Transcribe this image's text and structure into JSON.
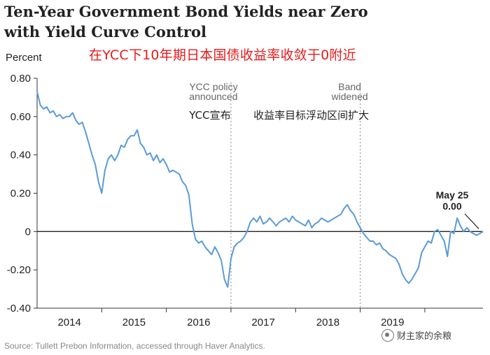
{
  "chart_data": {
    "type": "line",
    "title": "Ten-Year Government Bond Yields near Zero with Yield Curve Control",
    "subtitle": "在YCC下10年期日本国债收益率收敛于0附近",
    "ylabel": "Percent",
    "ylim": [
      -0.4,
      0.8
    ],
    "yticks": [
      "0.80",
      "0.60",
      "0.40",
      "0.20",
      "0",
      "-0.20",
      "-0.40"
    ],
    "ytick_values": [
      0.8,
      0.6,
      0.4,
      0.2,
      0,
      -0.2,
      -0.4
    ],
    "xlim": [
      2013.5,
      2020.4
    ],
    "xticks": [
      "2014",
      "2015",
      "2016",
      "2017",
      "2018",
      "2019"
    ],
    "xtick_centers": [
      2014.0,
      2015.0,
      2016.0,
      2017.0,
      2018.0,
      2019.0
    ],
    "year_boundaries": [
      2014.5,
      2015.5,
      2016.5,
      2017.5,
      2018.5,
      2019.5
    ],
    "series": [
      {
        "color": "#5b9bd5",
        "x": [
          2013.5,
          2013.55,
          2013.6,
          2013.65,
          2013.7,
          2013.75,
          2013.8,
          2013.85,
          2013.9,
          2013.95,
          2014.0,
          2014.05,
          2014.1,
          2014.15,
          2014.2,
          2014.25,
          2014.3,
          2014.35,
          2014.4,
          2014.45,
          2014.5,
          2014.55,
          2014.6,
          2014.65,
          2014.7,
          2014.75,
          2014.8,
          2014.85,
          2014.9,
          2014.95,
          2015.0,
          2015.05,
          2015.1,
          2015.15,
          2015.2,
          2015.25,
          2015.3,
          2015.35,
          2015.4,
          2015.45,
          2015.5,
          2015.55,
          2015.6,
          2015.65,
          2015.7,
          2015.75,
          2015.8,
          2015.85,
          2015.9,
          2015.95,
          2016.0,
          2016.05,
          2016.1,
          2016.15,
          2016.2,
          2016.25,
          2016.3,
          2016.35,
          2016.4,
          2016.45,
          2016.5,
          2016.55,
          2016.6,
          2016.65,
          2016.7,
          2016.75,
          2016.8,
          2016.85,
          2016.9,
          2016.95,
          2017.0,
          2017.05,
          2017.1,
          2017.15,
          2017.2,
          2017.25,
          2017.3,
          2017.35,
          2017.4,
          2017.45,
          2017.5,
          2017.55,
          2017.6,
          2017.65,
          2017.7,
          2017.75,
          2017.8,
          2017.85,
          2017.9,
          2017.95,
          2018.0,
          2018.05,
          2018.1,
          2018.15,
          2018.2,
          2018.25,
          2018.3,
          2018.35,
          2018.4,
          2018.45,
          2018.5,
          2018.55,
          2018.6,
          2018.65,
          2018.7,
          2018.75,
          2018.8,
          2018.85,
          2018.9,
          2018.95,
          2019.0,
          2019.05,
          2019.1,
          2019.15,
          2019.2,
          2019.25,
          2019.3,
          2019.35,
          2019.4,
          2019.45,
          2019.5,
          2019.55,
          2019.6,
          2019.65,
          2019.7,
          2019.75,
          2019.8,
          2019.85,
          2019.9,
          2019.95,
          2020.0,
          2020.05,
          2020.1,
          2020.15,
          2020.2,
          2020.25,
          2020.3,
          2020.35,
          2020.4
        ],
        "y": [
          0.73,
          0.66,
          0.64,
          0.65,
          0.62,
          0.63,
          0.6,
          0.61,
          0.59,
          0.6,
          0.6,
          0.62,
          0.58,
          0.56,
          0.57,
          0.52,
          0.46,
          0.4,
          0.35,
          0.26,
          0.2,
          0.32,
          0.38,
          0.4,
          0.37,
          0.4,
          0.45,
          0.44,
          0.48,
          0.5,
          0.5,
          0.53,
          0.46,
          0.44,
          0.4,
          0.41,
          0.37,
          0.4,
          0.36,
          0.38,
          0.35,
          0.31,
          0.32,
          0.31,
          0.3,
          0.26,
          0.24,
          0.19,
          0.04,
          -0.04,
          -0.06,
          -0.05,
          -0.08,
          -0.1,
          -0.12,
          -0.08,
          -0.11,
          -0.15,
          -0.25,
          -0.29,
          -0.14,
          -0.08,
          -0.06,
          -0.05,
          -0.03,
          0.0,
          0.05,
          0.07,
          0.05,
          0.08,
          0.04,
          0.05,
          0.07,
          0.05,
          0.03,
          0.05,
          0.06,
          0.07,
          0.05,
          0.08,
          0.06,
          0.05,
          0.04,
          0.03,
          0.06,
          0.02,
          0.04,
          0.05,
          0.07,
          0.06,
          0.05,
          0.06,
          0.07,
          0.08,
          0.09,
          0.12,
          0.14,
          0.11,
          0.09,
          0.05,
          0.02,
          -0.01,
          -0.03,
          -0.05,
          -0.05,
          -0.07,
          -0.06,
          -0.09,
          -0.1,
          -0.12,
          -0.13,
          -0.14,
          -0.17,
          -0.22,
          -0.25,
          -0.27,
          -0.25,
          -0.22,
          -0.19,
          -0.11,
          -0.08,
          -0.05,
          -0.06,
          0.0,
          0.01,
          -0.02,
          -0.05,
          -0.13,
          0.0,
          -0.01,
          0.07,
          0.03,
          0.0,
          0.02,
          0.0,
          -0.01,
          -0.02,
          -0.01,
          0.0
        ]
      }
    ],
    "annotations": [
      {
        "x": 2016.5,
        "lines_en": [
          "YCC policy",
          "announced"
        ],
        "label_cn": "YCC宣布"
      },
      {
        "x": 2018.5,
        "lines_en": [
          "Band",
          "widened"
        ],
        "label_cn": "收益率目标浮动区间扩大"
      }
    ],
    "end_label": [
      "May 25",
      "0.00"
    ]
  },
  "source": "Source: Tullett Prebon Information, accessed through Haver Analytics.",
  "watermark": "财主家的余粮"
}
